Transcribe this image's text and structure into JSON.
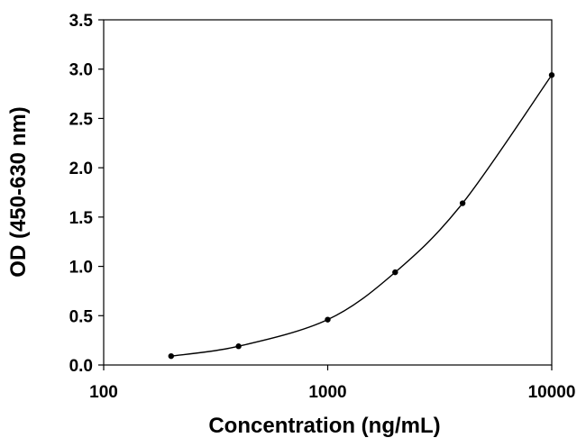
{
  "chart_data": {
    "type": "line",
    "title": "",
    "xlabel": "Concentration (ng/mL)",
    "ylabel": "OD (450-630 nm)",
    "x_scale": "log",
    "xlim": [
      100,
      10000
    ],
    "ylim": [
      0,
      3.5
    ],
    "x_ticks": [
      100,
      1000,
      10000
    ],
    "x_tick_labels": [
      "100",
      "1000",
      "10000"
    ],
    "y_ticks": [
      0,
      0.5,
      1.0,
      1.5,
      2.0,
      2.5,
      3.0,
      3.5
    ],
    "y_tick_labels": [
      "0.0",
      "0.5",
      "1.0",
      "1.5",
      "2.0",
      "2.5",
      "3.0",
      "3.5"
    ],
    "grid": false,
    "legend": "none",
    "series": [
      {
        "x": [
          200,
          400,
          1000,
          2000,
          4000,
          10000
        ],
        "y": [
          0.09,
          0.19,
          0.46,
          0.94,
          1.64,
          2.94
        ],
        "color": "#000000"
      }
    ]
  }
}
